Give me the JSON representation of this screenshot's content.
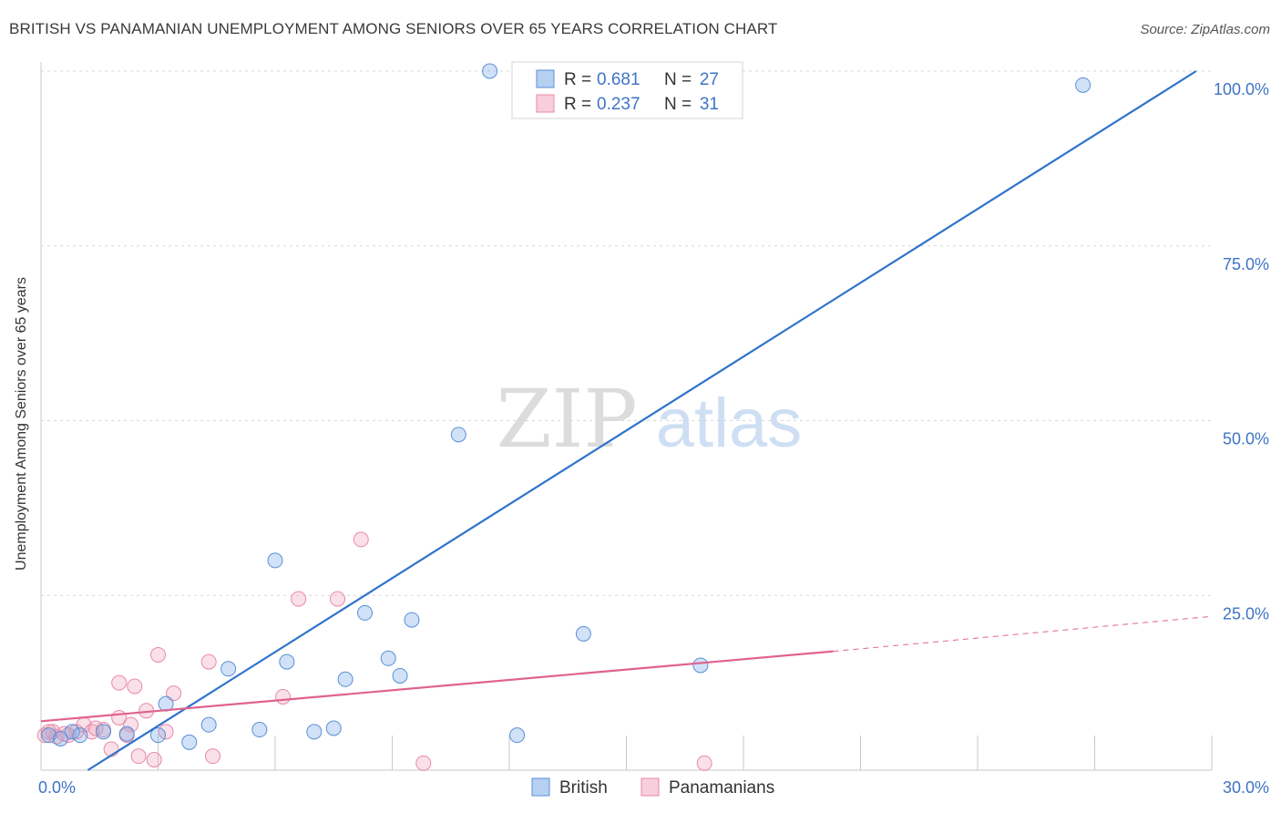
{
  "title": "BRITISH VS PANAMANIAN UNEMPLOYMENT AMONG SENIORS OVER 65 YEARS CORRELATION CHART",
  "source": "Source: ZipAtlas.com",
  "watermark": {
    "zip": "ZIP",
    "atlas": "atlas"
  },
  "colors": {
    "british": "#7aaae8",
    "british_line": "#2f73cc",
    "panamanian": "#f2a5bd",
    "panamanian_line": "#e0628f",
    "axis_text": "#3e74c5",
    "grid": "#d8d8d8"
  },
  "legend": {
    "r_label": "R =",
    "n_label": "N =",
    "british": {
      "r": "0.681",
      "n": "27"
    },
    "panamanian": {
      "r": "0.237",
      "n": "31"
    }
  },
  "chart_data": {
    "type": "scatter",
    "title": "BRITISH VS PANAMANIAN UNEMPLOYMENT AMONG SENIORS OVER 65 YEARS CORRELATION CHART",
    "xlabel": "",
    "ylabel": "Unemployment Among Seniors over 65 years",
    "xlim": [
      0,
      30
    ],
    "ylim": [
      0,
      100
    ],
    "x_tick_labels": [
      "0.0%",
      "30.0%"
    ],
    "y_ticks": [
      25,
      50,
      75,
      100
    ],
    "y_tick_labels": [
      "25.0%",
      "50.0%",
      "75.0%",
      "100.0%"
    ],
    "legend_entries": [
      "British",
      "Panamanians"
    ],
    "series": [
      {
        "name": "British",
        "points": [
          [
            0.2,
            5.0
          ],
          [
            0.5,
            4.5
          ],
          [
            0.8,
            5.5
          ],
          [
            1.0,
            5.0
          ],
          [
            1.6,
            5.5
          ],
          [
            2.2,
            5.2
          ],
          [
            3.0,
            5.0
          ],
          [
            3.2,
            9.5
          ],
          [
            3.8,
            4.0
          ],
          [
            4.3,
            6.5
          ],
          [
            4.8,
            14.5
          ],
          [
            5.6,
            5.8
          ],
          [
            6.0,
            30.0
          ],
          [
            6.3,
            15.5
          ],
          [
            7.0,
            5.5
          ],
          [
            7.5,
            6.0
          ],
          [
            7.8,
            13.0
          ],
          [
            8.3,
            22.5
          ],
          [
            8.9,
            16.0
          ],
          [
            9.2,
            13.5
          ],
          [
            9.5,
            21.5
          ],
          [
            10.7,
            48.0
          ],
          [
            11.5,
            100.0
          ],
          [
            12.2,
            5.0
          ],
          [
            13.9,
            19.5
          ],
          [
            16.9,
            15.0
          ],
          [
            26.7,
            98.0
          ]
        ],
        "trend": {
          "x1": 1.2,
          "y1": 0,
          "x2": 29.6,
          "y2": 100
        }
      },
      {
        "name": "Panamanians",
        "points": [
          [
            0.1,
            5.0
          ],
          [
            0.3,
            5.5
          ],
          [
            0.4,
            4.8
          ],
          [
            0.6,
            5.2
          ],
          [
            0.9,
            5.5
          ],
          [
            1.1,
            6.5
          ],
          [
            1.3,
            5.5
          ],
          [
            1.6,
            5.8
          ],
          [
            1.8,
            3.0
          ],
          [
            2.0,
            12.5
          ],
          [
            2.0,
            7.5
          ],
          [
            2.3,
            6.5
          ],
          [
            2.4,
            12.0
          ],
          [
            2.5,
            2.0
          ],
          [
            2.7,
            8.5
          ],
          [
            2.9,
            1.5
          ],
          [
            3.0,
            16.5
          ],
          [
            3.2,
            5.5
          ],
          [
            3.4,
            11.0
          ],
          [
            4.3,
            15.5
          ],
          [
            4.4,
            2.0
          ],
          [
            6.2,
            10.5
          ],
          [
            6.6,
            24.5
          ],
          [
            7.6,
            24.5
          ],
          [
            8.2,
            33.0
          ],
          [
            9.8,
            1.0
          ],
          [
            17.0,
            1.0
          ],
          [
            0.2,
            5.5
          ],
          [
            0.7,
            5.0
          ],
          [
            1.4,
            6.0
          ],
          [
            2.2,
            5.0
          ]
        ],
        "trend": {
          "x1": 0,
          "y1": 7.0,
          "x2": 20.3,
          "y2": 17.0,
          "dash_to_x": 30,
          "dash_to_y": 22.0
        }
      }
    ]
  }
}
